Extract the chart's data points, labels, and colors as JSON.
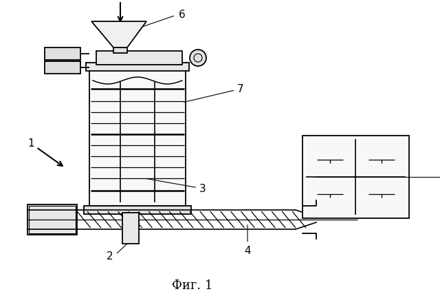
{
  "title": "Фиг. 1",
  "title_fontsize": 13,
  "background_color": "#ffffff",
  "line_color": "#000000",
  "label_color": "#000000"
}
